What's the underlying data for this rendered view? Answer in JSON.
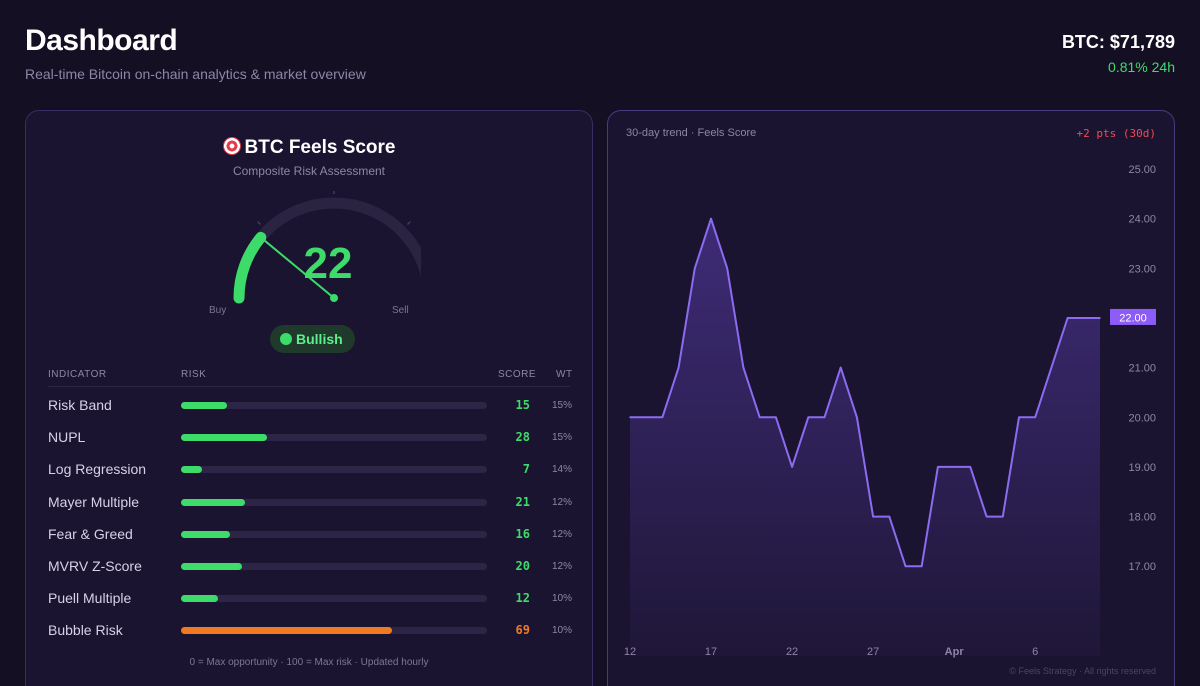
{
  "header": {
    "title": "Dashboard",
    "subtitle": "Real-time Bitcoin on-chain analytics & market overview"
  },
  "ticker": {
    "price": "BTC: $71,789",
    "change": "0.81% 24h"
  },
  "score": {
    "title": "BTC Feels Score",
    "subtitle": "Composite Risk Assessment",
    "value": "22",
    "value_fraction": 0.22,
    "buy_label": "Buy",
    "sell_label": "Sell",
    "status": "Bullish",
    "colors": {
      "bull": "#3ddc6a",
      "risk": "#f07a24"
    }
  },
  "table": {
    "headers": {
      "indicator": "INDICATOR",
      "risk": "RISK",
      "score": "SCORE",
      "weight": "WT"
    },
    "rows": [
      {
        "name": "Risk Band",
        "score": 15,
        "weight": "15%"
      },
      {
        "name": "NUPL",
        "score": 28,
        "weight": "15%"
      },
      {
        "name": "Log Regression",
        "score": 7,
        "weight": "14%"
      },
      {
        "name": "Mayer Multiple",
        "score": 21,
        "weight": "12%"
      },
      {
        "name": "Fear & Greed",
        "score": 16,
        "weight": "12%"
      },
      {
        "name": "MVRV Z-Score",
        "score": 20,
        "weight": "12%"
      },
      {
        "name": "Puell Multiple",
        "score": 12,
        "weight": "10%"
      },
      {
        "name": "Bubble Risk",
        "score": 69,
        "weight": "10%"
      }
    ],
    "footnote": "0 = Max opportunity · 100 = Max risk · Updated hourly"
  },
  "trend": {
    "label": "30-day trend · Feels Score",
    "delta": "+2 pts (30d)",
    "copyright": "© Feels Strategy · All rights reserved"
  },
  "chart_data": {
    "type": "area",
    "title": "30-day trend · Feels Score",
    "x": [
      0,
      1,
      2,
      3,
      4,
      5,
      6,
      7,
      8,
      9,
      10,
      11,
      12,
      13,
      14,
      15,
      16,
      17,
      18,
      19,
      20,
      21,
      22,
      23,
      24,
      25,
      26,
      27,
      28,
      29
    ],
    "values": [
      20,
      20,
      20,
      21,
      23,
      24,
      23,
      21,
      20,
      20,
      19,
      20,
      20,
      21,
      20,
      18,
      18,
      17,
      17,
      19,
      19,
      19,
      18,
      18,
      20,
      20,
      21,
      22,
      22,
      22
    ],
    "x_ticks": [
      {
        "x": 0,
        "label": "12"
      },
      {
        "x": 5,
        "label": "17"
      },
      {
        "x": 10,
        "label": "22"
      },
      {
        "x": 15,
        "label": "27"
      },
      {
        "x": 20,
        "label": "Apr"
      },
      {
        "x": 25,
        "label": "6"
      }
    ],
    "y_ticks": [
      "17.00",
      "18.00",
      "19.00",
      "20.00",
      "21.00",
      "22.00",
      "23.00",
      "24.00",
      "25.00"
    ],
    "ylim": [
      16.4,
      25
    ],
    "last_value_label": "22.00",
    "colors": {
      "line": "#8b6cf0",
      "fill": "#5a3fb0",
      "badge": "#8b5cf6"
    }
  }
}
